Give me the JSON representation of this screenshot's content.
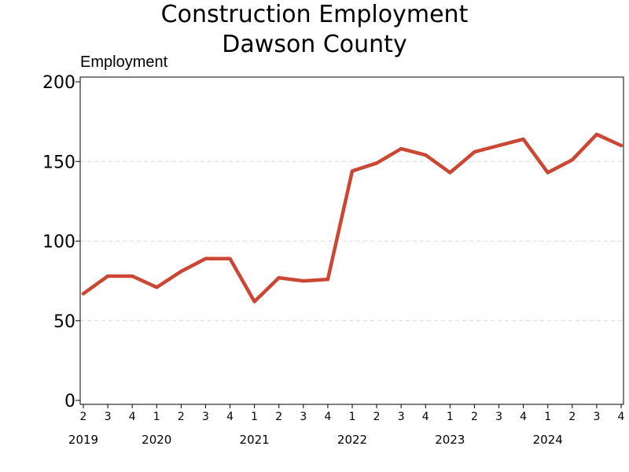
{
  "chart_data": {
    "type": "line",
    "title": "Construction Employment",
    "subtitle": "Dawson County",
    "ylabel": "Employment",
    "xlabel": "",
    "ylim": [
      0,
      200
    ],
    "yticks": [
      0,
      50,
      100,
      150,
      200
    ],
    "grid": true,
    "x": [
      "2019 Q2",
      "2019 Q3",
      "2019 Q4",
      "2020 Q1",
      "2020 Q2",
      "2020 Q3",
      "2020 Q4",
      "2021 Q1",
      "2021 Q2",
      "2021 Q3",
      "2021 Q4",
      "2022 Q1",
      "2022 Q2",
      "2022 Q3",
      "2022 Q4",
      "2023 Q1",
      "2023 Q2",
      "2023 Q3",
      "2023 Q4",
      "2024 Q1",
      "2024 Q2",
      "2024 Q3",
      "2024 Q4"
    ],
    "quarter_labels": [
      "2",
      "3",
      "4",
      "1",
      "2",
      "3",
      "4",
      "1",
      "2",
      "3",
      "4",
      "1",
      "2",
      "3",
      "4",
      "1",
      "2",
      "3",
      "4",
      "1",
      "2",
      "3",
      "4"
    ],
    "year_labels": [
      {
        "label": "2019",
        "quarter_index": 0
      },
      {
        "label": "2020",
        "quarter_index": 3
      },
      {
        "label": "2021",
        "quarter_index": 7
      },
      {
        "label": "2022",
        "quarter_index": 11
      },
      {
        "label": "2023",
        "quarter_index": 15
      },
      {
        "label": "2024",
        "quarter_index": 19
      }
    ],
    "series": [
      {
        "values": [
          67,
          78,
          78,
          71,
          81,
          89,
          89,
          62,
          77,
          75,
          76,
          144,
          149,
          158,
          154,
          143,
          156,
          160,
          164,
          143,
          151,
          167,
          160
        ],
        "color": "#cc4733"
      }
    ]
  }
}
